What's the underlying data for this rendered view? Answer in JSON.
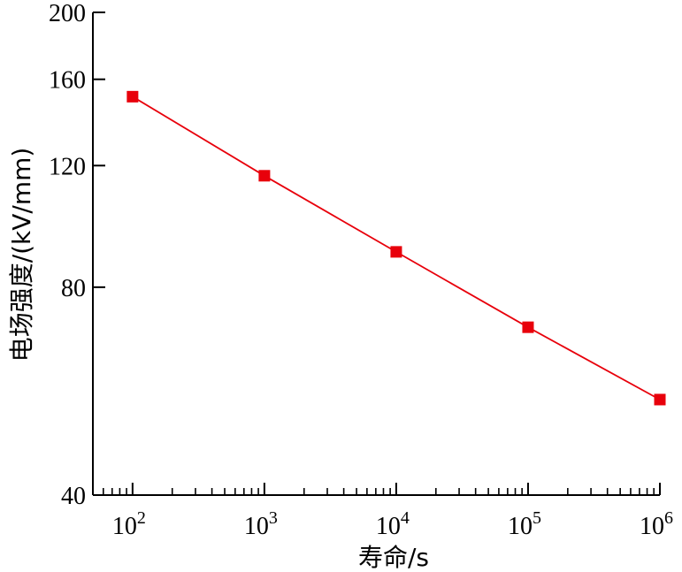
{
  "chart_data": {
    "type": "line",
    "title": "",
    "xlabel": "寿命/s",
    "ylabel": "电场强度/(kV/mm)",
    "x_scale": "log",
    "y_scale": "log",
    "xlim": [
      50,
      1000000
    ],
    "ylim": [
      40,
      200
    ],
    "x_ticks": [
      {
        "base": "10",
        "exp": "2",
        "value": 100
      },
      {
        "base": "10",
        "exp": "3",
        "value": 1000
      },
      {
        "base": "10",
        "exp": "4",
        "value": 10000
      },
      {
        "base": "10",
        "exp": "5",
        "value": 100000
      },
      {
        "base": "10",
        "exp": "6",
        "value": 1000000
      }
    ],
    "y_ticks": [
      {
        "label": "40",
        "value": 40
      },
      {
        "label": "80",
        "value": 80
      },
      {
        "label": "120",
        "value": 120
      },
      {
        "label": "160",
        "value": 160
      },
      {
        "label": "200",
        "value": 200
      }
    ],
    "series": [
      {
        "color": "#e8000b",
        "marker": "square",
        "x": [
          100,
          1000,
          10000,
          100000,
          1000000
        ],
        "y": [
          151,
          116,
          90,
          70,
          55
        ]
      }
    ],
    "grid": false,
    "legend": "none"
  }
}
